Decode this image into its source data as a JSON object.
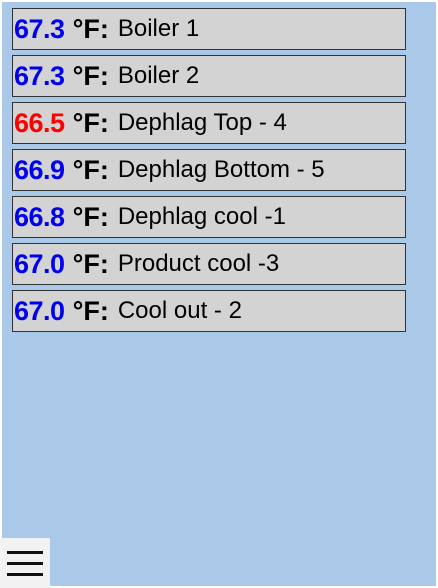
{
  "colors": {
    "background": "#aac8e8",
    "row_background": "#d3d3d3",
    "temp_normal": "#0000ee",
    "temp_alert": "#ff0000"
  },
  "sensors": [
    {
      "value": "67.3",
      "unit": "°F:",
      "name": "Boiler 1",
      "status": "normal"
    },
    {
      "value": "67.3",
      "unit": "°F:",
      "name": "Boiler 2",
      "status": "normal"
    },
    {
      "value": "66.5",
      "unit": "°F:",
      "name": "Dephlag Top - 4",
      "status": "alert"
    },
    {
      "value": "66.9",
      "unit": "°F:",
      "name": "Dephlag Bottom - 5",
      "status": "normal"
    },
    {
      "value": "66.8",
      "unit": "°F:",
      "name": "Dephlag cool -1",
      "status": "normal"
    },
    {
      "value": "67.0",
      "unit": "°F:",
      "name": "Product cool -3",
      "status": "normal"
    },
    {
      "value": "67.0",
      "unit": "°F:",
      "name": "Cool out - 2",
      "status": "normal"
    }
  ],
  "menu": {
    "icon": "hamburger-menu-icon"
  }
}
